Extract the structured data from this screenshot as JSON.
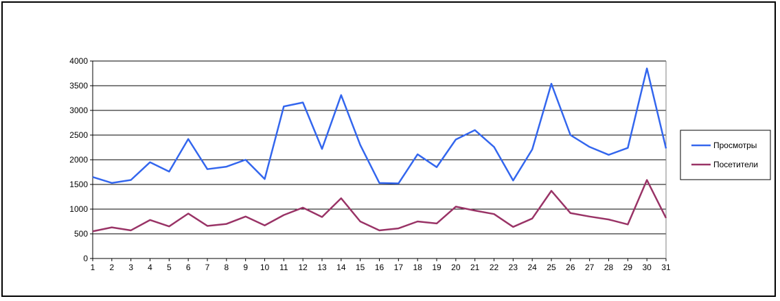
{
  "chart_data": {
    "type": "line",
    "title": "",
    "xlabel": "",
    "ylabel": "",
    "x": [
      1,
      2,
      3,
      4,
      5,
      6,
      7,
      8,
      9,
      10,
      11,
      12,
      13,
      14,
      15,
      16,
      17,
      18,
      19,
      20,
      21,
      22,
      23,
      24,
      25,
      26,
      27,
      28,
      29,
      30,
      31
    ],
    "ylim": [
      0,
      4000
    ],
    "yticks": [
      0,
      500,
      1000,
      1500,
      2000,
      2500,
      3000,
      3500,
      4000
    ],
    "grid": "horizontal",
    "legend_position": "right",
    "series": [
      {
        "name": "Просмотры",
        "color": "#3366ee",
        "values": [
          1650,
          1530,
          1590,
          1950,
          1760,
          2420,
          1810,
          1860,
          2000,
          1610,
          3080,
          3160,
          2220,
          3310,
          2300,
          1530,
          1520,
          2110,
          1850,
          2410,
          2600,
          2260,
          1580,
          2210,
          3540,
          2500,
          2260,
          2100,
          2240,
          3850,
          2230
        ]
      },
      {
        "name": "Посетители",
        "color": "#993366",
        "values": [
          550,
          630,
          570,
          780,
          650,
          910,
          660,
          700,
          850,
          670,
          880,
          1030,
          840,
          1220,
          750,
          570,
          610,
          750,
          710,
          1050,
          970,
          900,
          640,
          810,
          1370,
          920,
          850,
          790,
          690,
          1590,
          820
        ]
      }
    ]
  }
}
